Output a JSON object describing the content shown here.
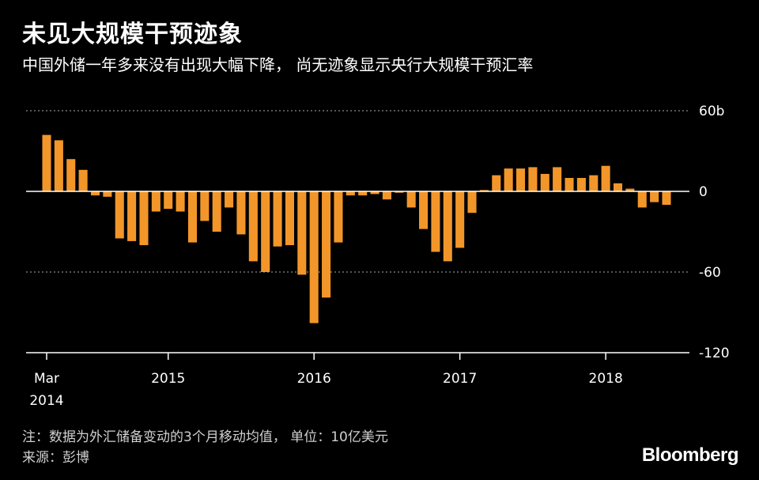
{
  "header": {
    "title": "未见大规模干预迹象",
    "subtitle": "中国外储一年多来没有出现大幅下降， 尚无迹象显示央行大规模干预汇率"
  },
  "footer": {
    "note": "注：数据为外汇储备变动的3个月移动均值， 单位：10亿美元",
    "source": "来源：彭博",
    "logo": "Bloomberg"
  },
  "colors": {
    "bar": "#f2962a",
    "background": "#000000",
    "grid": "#8a8a8a",
    "axis": "#ffffff"
  },
  "chart_data": {
    "type": "bar",
    "x_start": "2014-03",
    "x_end": "2018-06",
    "categories": [
      "2014-03",
      "2014-04",
      "2014-05",
      "2014-06",
      "2014-07",
      "2014-08",
      "2014-09",
      "2014-10",
      "2014-11",
      "2014-12",
      "2015-01",
      "2015-02",
      "2015-03",
      "2015-04",
      "2015-05",
      "2015-06",
      "2015-07",
      "2015-08",
      "2015-09",
      "2015-10",
      "2015-11",
      "2015-12",
      "2016-01",
      "2016-02",
      "2016-03",
      "2016-04",
      "2016-05",
      "2016-06",
      "2016-07",
      "2016-08",
      "2016-09",
      "2016-10",
      "2016-11",
      "2016-12",
      "2017-01",
      "2017-02",
      "2017-03",
      "2017-04",
      "2017-05",
      "2017-06",
      "2017-07",
      "2017-08",
      "2017-09",
      "2017-10",
      "2017-11",
      "2017-12",
      "2018-01",
      "2018-02",
      "2018-03",
      "2018-04",
      "2018-05",
      "2018-06"
    ],
    "values": [
      42,
      38,
      24,
      16,
      -3,
      -4,
      -35,
      -37,
      -40,
      -15,
      -13,
      -15,
      -38,
      -22,
      -30,
      -12,
      -32,
      -52,
      -60,
      -41,
      -40,
      -62,
      -98,
      -79,
      -38,
      -3,
      -3,
      -2,
      -6,
      -1,
      -12,
      -28,
      -45,
      -52,
      -42,
      -16,
      1,
      12,
      17,
      17,
      18,
      13,
      18,
      10,
      10,
      12,
      19,
      6,
      2,
      -12,
      -8,
      -10
    ],
    "ylim": [
      -120,
      60
    ],
    "y_ticks": [
      60,
      0,
      -60,
      -120
    ],
    "y_tick_labels": [
      "60b",
      "0",
      "-60",
      "-120"
    ],
    "x_ticks": [
      {
        "at": "2014-03",
        "label": "Mar",
        "sublabel": "2014"
      },
      {
        "at": "2015-01",
        "label": "2015",
        "sublabel": ""
      },
      {
        "at": "2016-01",
        "label": "2016",
        "sublabel": ""
      },
      {
        "at": "2017-01",
        "label": "2017",
        "sublabel": ""
      },
      {
        "at": "2018-01",
        "label": "2018",
        "sublabel": ""
      }
    ],
    "grid": true,
    "unit": "10亿美元"
  }
}
